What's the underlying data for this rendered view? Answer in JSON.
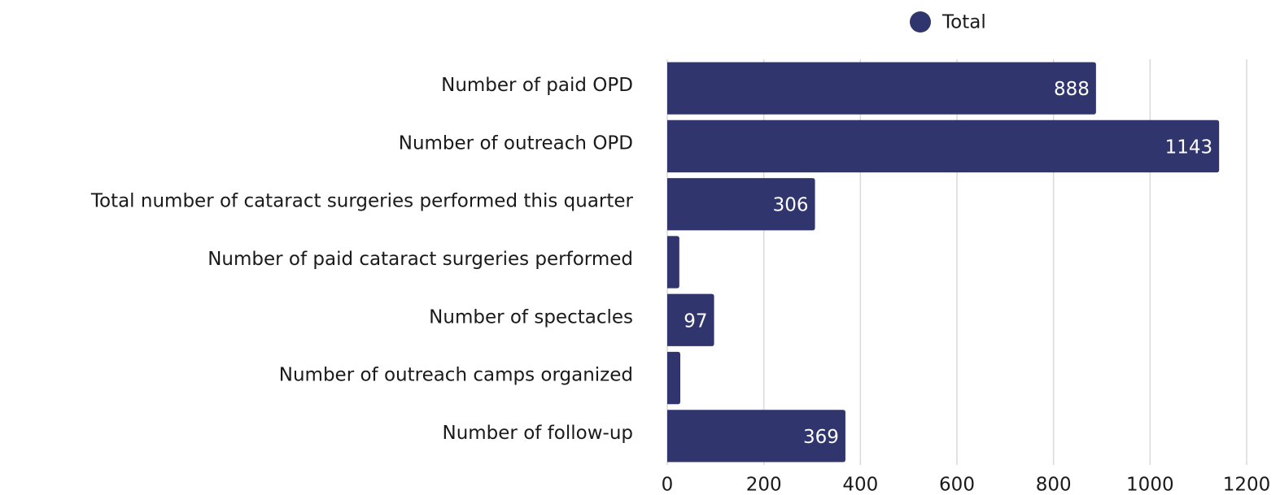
{
  "chart_data": {
    "type": "bar",
    "orientation": "horizontal",
    "categories": [
      "Number of paid OPD",
      "Number of outreach OPD",
      "Total number of cataract surgeries performed this quarter",
      "Number of paid cataract surgeries performed",
      "Number of spectacles",
      "Number of outreach camps organized",
      "Number of follow-up"
    ],
    "series": [
      {
        "name": "Total",
        "color": "#31356e",
        "values": [
          888,
          1143,
          306,
          25,
          97,
          27,
          369
        ]
      }
    ],
    "xlim": [
      0,
      1200
    ],
    "xticks": [
      0,
      200,
      400,
      600,
      800,
      1000,
      1200
    ],
    "grid": true,
    "legend": "top"
  }
}
